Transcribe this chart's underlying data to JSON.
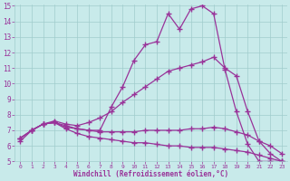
{
  "line1_x": [
    0,
    1,
    2,
    3,
    4,
    5,
    6,
    7,
    8,
    9,
    10,
    11,
    12,
    13,
    14,
    15,
    16,
    17,
    18,
    19,
    20,
    21,
    22,
    23
  ],
  "line1_y": [
    6.3,
    7.0,
    7.4,
    7.5,
    7.2,
    7.1,
    7.0,
    7.0,
    8.5,
    9.8,
    11.5,
    12.5,
    12.7,
    14.5,
    13.5,
    14.8,
    15.0,
    14.5,
    10.9,
    8.2,
    6.1,
    5.0,
    5.0,
    5.0
  ],
  "line2_x": [
    0,
    1,
    2,
    3,
    4,
    5,
    6,
    7,
    8,
    9,
    10,
    11,
    12,
    13,
    14,
    15,
    16,
    17,
    18,
    19,
    20,
    21,
    22,
    23
  ],
  "line2_y": [
    6.5,
    7.0,
    7.4,
    7.6,
    7.4,
    7.3,
    7.5,
    7.8,
    8.2,
    8.8,
    9.3,
    9.8,
    10.3,
    10.8,
    11.0,
    11.2,
    11.4,
    11.7,
    11.0,
    10.5,
    8.2,
    6.3,
    5.5,
    5.0
  ],
  "line3_x": [
    0,
    1,
    2,
    3,
    4,
    5,
    6,
    7,
    8,
    9,
    10,
    11,
    12,
    13,
    14,
    15,
    16,
    17,
    18,
    19,
    20,
    21,
    22,
    23
  ],
  "line3_y": [
    6.5,
    7.0,
    7.4,
    7.5,
    7.3,
    7.1,
    7.0,
    6.9,
    6.9,
    6.9,
    6.9,
    7.0,
    7.0,
    7.0,
    7.0,
    7.1,
    7.1,
    7.2,
    7.1,
    6.9,
    6.7,
    6.3,
    6.0,
    5.5
  ],
  "line4_x": [
    0,
    1,
    2,
    3,
    4,
    5,
    6,
    7,
    8,
    9,
    10,
    11,
    12,
    13,
    14,
    15,
    16,
    17,
    18,
    19,
    20,
    21,
    22,
    23
  ],
  "line4_y": [
    6.5,
    7.0,
    7.4,
    7.5,
    7.1,
    6.8,
    6.6,
    6.5,
    6.4,
    6.3,
    6.2,
    6.2,
    6.1,
    6.0,
    6.0,
    5.9,
    5.9,
    5.9,
    5.8,
    5.7,
    5.6,
    5.4,
    5.2,
    5.0
  ],
  "color": "#993399",
  "bg_color": "#c8eaea",
  "grid_color": "#a0cccc",
  "xlabel": "Windchill (Refroidissement éolien,°C)",
  "xlim": [
    -0.5,
    23.5
  ],
  "ylim": [
    5,
    15
  ],
  "xticks": [
    0,
    1,
    2,
    3,
    4,
    5,
    6,
    7,
    8,
    9,
    10,
    11,
    12,
    13,
    14,
    15,
    16,
    17,
    18,
    19,
    20,
    21,
    22,
    23
  ],
  "yticks": [
    5,
    6,
    7,
    8,
    9,
    10,
    11,
    12,
    13,
    14,
    15
  ]
}
